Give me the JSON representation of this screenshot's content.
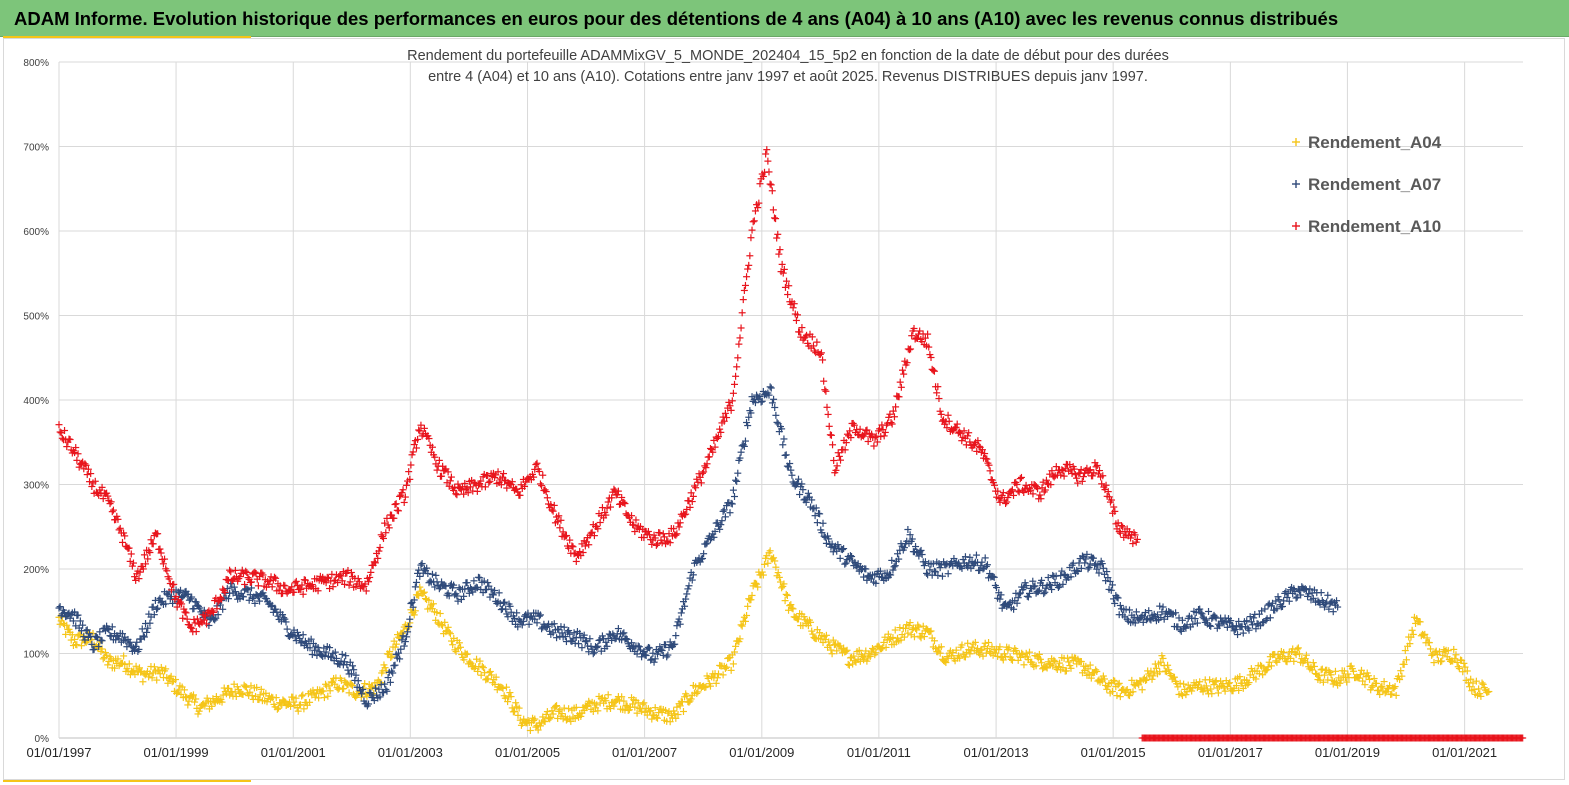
{
  "header": {
    "title": "ADAM Informe. Evolution historique des performances en euros pour des détentions de 4 ans (A04) à 10 ans (A10) avec les revenus connus distribués"
  },
  "colors": {
    "banner": "#7dc57a",
    "accent": "#f5c518",
    "A04": "#f5c518",
    "A07": "#2f4a7a",
    "A10": "#e8141c"
  },
  "chart_data": {
    "type": "scatter",
    "title_line1": "Rendement du portefeuille ADAMMixGV_5_MONDE_202404_15_5p2 en fonction de la date de début pour des durées",
    "title_line2": "entre 4 (A04) et 10 ans (A10). Cotations entre janv 1997 et août 2025. Revenus DISTRIBUES depuis janv 1997.",
    "xlabel": "",
    "ylabel": "",
    "x_range": [
      "1997-01-01",
      "2021-12-31"
    ],
    "ylim": [
      0,
      800
    ],
    "x_ticks": [
      "01/01/1997",
      "01/01/1999",
      "01/01/2001",
      "01/01/2003",
      "01/01/2005",
      "01/01/2007",
      "01/01/2009",
      "01/01/2011",
      "01/01/2013",
      "01/01/2015",
      "01/01/2017",
      "01/01/2019",
      "01/01/2021"
    ],
    "y_ticks": [
      "0%",
      "100%",
      "200%",
      "300%",
      "400%",
      "500%",
      "600%",
      "700%",
      "800%"
    ],
    "grid": true,
    "legend_position": "top-right",
    "series": [
      {
        "name": "Rendement_A04",
        "color": "#f5c518",
        "points": [
          [
            "1997-01-01",
            140
          ],
          [
            "1997-04-01",
            115
          ],
          [
            "1997-08-01",
            118
          ],
          [
            "1997-11-01",
            90
          ],
          [
            "1998-02-01",
            90
          ],
          [
            "1998-06-01",
            75
          ],
          [
            "1998-10-01",
            78
          ],
          [
            "1999-02-01",
            55
          ],
          [
            "1999-06-01",
            35
          ],
          [
            "1999-10-01",
            48
          ],
          [
            "2000-02-01",
            60
          ],
          [
            "2000-06-01",
            50
          ],
          [
            "2000-10-01",
            42
          ],
          [
            "2001-02-01",
            40
          ],
          [
            "2001-06-01",
            50
          ],
          [
            "2001-10-01",
            65
          ],
          [
            "2002-02-01",
            55
          ],
          [
            "2002-06-01",
            60
          ],
          [
            "2002-09-01",
            100
          ],
          [
            "2002-12-01",
            130
          ],
          [
            "2003-03-01",
            170
          ],
          [
            "2003-06-01",
            150
          ],
          [
            "2003-09-01",
            120
          ],
          [
            "2003-12-01",
            100
          ],
          [
            "2004-04-01",
            80
          ],
          [
            "2004-08-01",
            60
          ],
          [
            "2004-12-01",
            20
          ],
          [
            "2005-03-01",
            15
          ],
          [
            "2005-07-01",
            30
          ],
          [
            "2005-11-01",
            28
          ],
          [
            "2006-03-01",
            40
          ],
          [
            "2006-07-01",
            45
          ],
          [
            "2006-11-01",
            38
          ],
          [
            "2007-03-01",
            30
          ],
          [
            "2007-07-01",
            25
          ],
          [
            "2007-11-01",
            55
          ],
          [
            "2008-03-01",
            70
          ],
          [
            "2008-07-01",
            90
          ],
          [
            "2008-11-01",
            170
          ],
          [
            "2009-03-01",
            220
          ],
          [
            "2009-07-01",
            150
          ],
          [
            "2009-11-01",
            130
          ],
          [
            "2010-03-01",
            110
          ],
          [
            "2010-07-01",
            95
          ],
          [
            "2010-11-01",
            100
          ],
          [
            "2011-03-01",
            115
          ],
          [
            "2011-07-01",
            130
          ],
          [
            "2011-11-01",
            125
          ],
          [
            "2012-03-01",
            95
          ],
          [
            "2012-07-01",
            105
          ],
          [
            "2012-11-01",
            105
          ],
          [
            "2013-03-01",
            100
          ],
          [
            "2013-07-01",
            95
          ],
          [
            "2013-11-01",
            90
          ],
          [
            "2014-03-01",
            88
          ],
          [
            "2014-07-01",
            85
          ],
          [
            "2014-11-01",
            65
          ],
          [
            "2015-03-01",
            55
          ],
          [
            "2015-07-01",
            65
          ],
          [
            "2015-11-01",
            90
          ],
          [
            "2016-03-01",
            55
          ],
          [
            "2016-07-01",
            62
          ],
          [
            "2016-11-01",
            60
          ],
          [
            "2017-03-01",
            65
          ],
          [
            "2017-07-01",
            80
          ],
          [
            "2017-11-01",
            95
          ],
          [
            "2018-03-01",
            100
          ],
          [
            "2018-07-01",
            75
          ],
          [
            "2018-11-01",
            70
          ],
          [
            "2019-03-01",
            80
          ],
          [
            "2019-07-01",
            60
          ],
          [
            "2019-11-01",
            58
          ],
          [
            "2020-03-01",
            140
          ],
          [
            "2020-07-01",
            95
          ],
          [
            "2020-11-01",
            100
          ],
          [
            "2021-03-01",
            60
          ],
          [
            "2021-06-01",
            55
          ]
        ]
      },
      {
        "name": "Rendement_A07",
        "color": "#2f4a7a",
        "points": [
          [
            "1997-01-01",
            155
          ],
          [
            "1997-04-01",
            145
          ],
          [
            "1997-08-01",
            110
          ],
          [
            "1997-11-01",
            125
          ],
          [
            "1998-02-01",
            120
          ],
          [
            "1998-05-01",
            105
          ],
          [
            "1998-09-01",
            160
          ],
          [
            "1999-01-01",
            170
          ],
          [
            "1999-04-01",
            165
          ],
          [
            "1999-08-01",
            135
          ],
          [
            "1999-12-01",
            175
          ],
          [
            "2000-04-01",
            170
          ],
          [
            "2000-08-01",
            160
          ],
          [
            "2000-12-01",
            130
          ],
          [
            "2001-04-01",
            110
          ],
          [
            "2001-08-01",
            100
          ],
          [
            "2001-12-01",
            90
          ],
          [
            "2002-04-01",
            45
          ],
          [
            "2002-08-01",
            60
          ],
          [
            "2002-12-01",
            120
          ],
          [
            "2003-03-01",
            200
          ],
          [
            "2003-07-01",
            180
          ],
          [
            "2003-11-01",
            170
          ],
          [
            "2004-03-01",
            185
          ],
          [
            "2004-07-01",
            165
          ],
          [
            "2004-11-01",
            140
          ],
          [
            "2005-03-01",
            140
          ],
          [
            "2005-07-01",
            125
          ],
          [
            "2005-11-01",
            120
          ],
          [
            "2006-03-01",
            105
          ],
          [
            "2006-07-01",
            125
          ],
          [
            "2006-11-01",
            110
          ],
          [
            "2007-03-01",
            95
          ],
          [
            "2007-07-01",
            110
          ],
          [
            "2007-11-01",
            200
          ],
          [
            "2008-03-01",
            240
          ],
          [
            "2008-07-01",
            280
          ],
          [
            "2008-11-01",
            400
          ],
          [
            "2009-03-01",
            410
          ],
          [
            "2009-07-01",
            310
          ],
          [
            "2009-11-01",
            280
          ],
          [
            "2010-03-01",
            230
          ],
          [
            "2010-07-01",
            210
          ],
          [
            "2010-11-01",
            190
          ],
          [
            "2011-03-01",
            195
          ],
          [
            "2011-07-01",
            240
          ],
          [
            "2011-11-01",
            200
          ],
          [
            "2012-03-01",
            200
          ],
          [
            "2012-07-01",
            210
          ],
          [
            "2012-11-01",
            205
          ],
          [
            "2013-03-01",
            150
          ],
          [
            "2013-07-01",
            175
          ],
          [
            "2013-11-01",
            180
          ],
          [
            "2014-03-01",
            190
          ],
          [
            "2014-07-01",
            210
          ],
          [
            "2014-11-01",
            200
          ],
          [
            "2015-03-01",
            145
          ],
          [
            "2015-07-01",
            140
          ],
          [
            "2015-11-01",
            150
          ],
          [
            "2016-03-01",
            135
          ],
          [
            "2016-07-01",
            145
          ],
          [
            "2016-11-01",
            135
          ],
          [
            "2017-03-01",
            130
          ],
          [
            "2017-07-01",
            140
          ],
          [
            "2017-11-01",
            160
          ],
          [
            "2018-03-01",
            175
          ],
          [
            "2018-07-01",
            165
          ],
          [
            "2018-11-01",
            155
          ]
        ]
      },
      {
        "name": "Rendement_A10",
        "color": "#e8141c",
        "points": [
          [
            "1997-01-01",
            365
          ],
          [
            "1997-04-01",
            340
          ],
          [
            "1997-08-01",
            300
          ],
          [
            "1997-11-01",
            280
          ],
          [
            "1998-02-01",
            240
          ],
          [
            "1998-05-01",
            190
          ],
          [
            "1998-09-01",
            240
          ],
          [
            "1999-01-01",
            165
          ],
          [
            "1999-04-01",
            130
          ],
          [
            "1999-08-01",
            145
          ],
          [
            "1999-12-01",
            190
          ],
          [
            "2000-04-01",
            190
          ],
          [
            "2000-08-01",
            185
          ],
          [
            "2000-12-01",
            175
          ],
          [
            "2001-04-01",
            180
          ],
          [
            "2001-08-01",
            185
          ],
          [
            "2001-12-01",
            190
          ],
          [
            "2002-04-01",
            180
          ],
          [
            "2002-08-01",
            250
          ],
          [
            "2002-12-01",
            290
          ],
          [
            "2003-03-01",
            370
          ],
          [
            "2003-07-01",
            320
          ],
          [
            "2003-11-01",
            290
          ],
          [
            "2004-03-01",
            300
          ],
          [
            "2004-07-01",
            310
          ],
          [
            "2004-11-01",
            290
          ],
          [
            "2005-03-01",
            320
          ],
          [
            "2005-07-01",
            260
          ],
          [
            "2005-11-01",
            215
          ],
          [
            "2006-03-01",
            250
          ],
          [
            "2006-07-01",
            290
          ],
          [
            "2006-11-01",
            250
          ],
          [
            "2007-03-01",
            235
          ],
          [
            "2007-07-01",
            240
          ],
          [
            "2007-11-01",
            290
          ],
          [
            "2008-03-01",
            340
          ],
          [
            "2008-07-01",
            400
          ],
          [
            "2008-11-01",
            600
          ],
          [
            "2009-02-01",
            690
          ],
          [
            "2009-05-01",
            560
          ],
          [
            "2009-09-01",
            480
          ],
          [
            "2010-01-01",
            460
          ],
          [
            "2010-04-01",
            320
          ],
          [
            "2010-08-01",
            370
          ],
          [
            "2010-12-01",
            350
          ],
          [
            "2011-04-01",
            380
          ],
          [
            "2011-08-01",
            480
          ],
          [
            "2011-11-01",
            470
          ],
          [
            "2012-02-01",
            380
          ],
          [
            "2012-06-01",
            360
          ],
          [
            "2012-10-01",
            340
          ],
          [
            "2013-02-01",
            280
          ],
          [
            "2013-06-01",
            300
          ],
          [
            "2013-10-01",
            290
          ],
          [
            "2014-02-01",
            320
          ],
          [
            "2014-06-01",
            310
          ],
          [
            "2014-10-01",
            320
          ],
          [
            "2015-02-01",
            250
          ],
          [
            "2015-06-01",
            235
          ]
        ]
      },
      {
        "name": "",
        "color": "#e8141c",
        "segment": [
          "2015-07-01",
          "2021-12-31"
        ],
        "value": 0
      }
    ]
  }
}
